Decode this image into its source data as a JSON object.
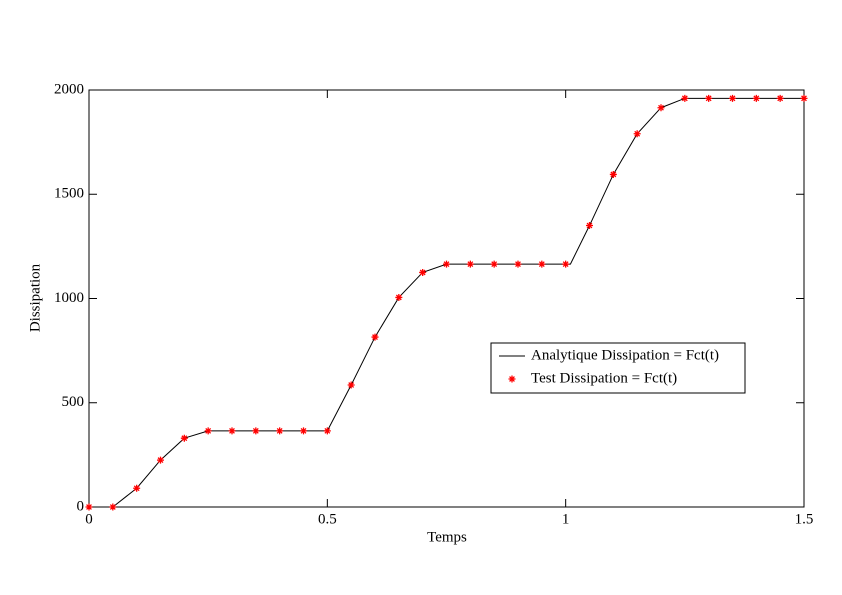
{
  "chart_data": {
    "type": "line",
    "xlabel": "Temps",
    "ylabel": "Dissipation",
    "xlim": [
      0,
      1.5
    ],
    "xticks": [
      0,
      0.5,
      1,
      1.5
    ],
    "ylim": [
      0,
      2000
    ],
    "yticks": [
      0,
      500,
      1000,
      1500,
      2000
    ],
    "legend": "right",
    "series": [
      {
        "name": "Analytique Dissipation = Fct(t)",
        "color": "#000000",
        "style": "line",
        "x": [
          0,
          0.05,
          0.1,
          0.15,
          0.2,
          0.25,
          0.5,
          0.55,
          0.6,
          0.65,
          0.7,
          0.75,
          1.01,
          1.05,
          1.1,
          1.15,
          1.2,
          1.25,
          1.5
        ],
        "values": [
          0,
          0,
          90,
          225,
          330,
          365,
          365,
          585,
          815,
          1005,
          1125,
          1165,
          1165,
          1350,
          1595,
          1790,
          1915,
          1960,
          1960
        ]
      },
      {
        "name": "Test Dissipation = Fct(t)",
        "color": "#ff0000",
        "style": "marker",
        "x": [
          0,
          0.05,
          0.1,
          0.15,
          0.2,
          0.25,
          0.3,
          0.35,
          0.4,
          0.45,
          0.5,
          0.55,
          0.6,
          0.65,
          0.7,
          0.75,
          0.8,
          0.85,
          0.9,
          0.95,
          1,
          1.05,
          1.1,
          1.15,
          1.2,
          1.25,
          1.3,
          1.35,
          1.4,
          1.45,
          1.5
        ],
        "values": [
          0,
          0,
          90,
          225,
          330,
          365,
          365,
          365,
          365,
          365,
          365,
          585,
          815,
          1005,
          1125,
          1165,
          1165,
          1165,
          1165,
          1165,
          1165,
          1350,
          1595,
          1790,
          1915,
          1960,
          1960,
          1960,
          1960,
          1960,
          1960
        ]
      }
    ]
  }
}
